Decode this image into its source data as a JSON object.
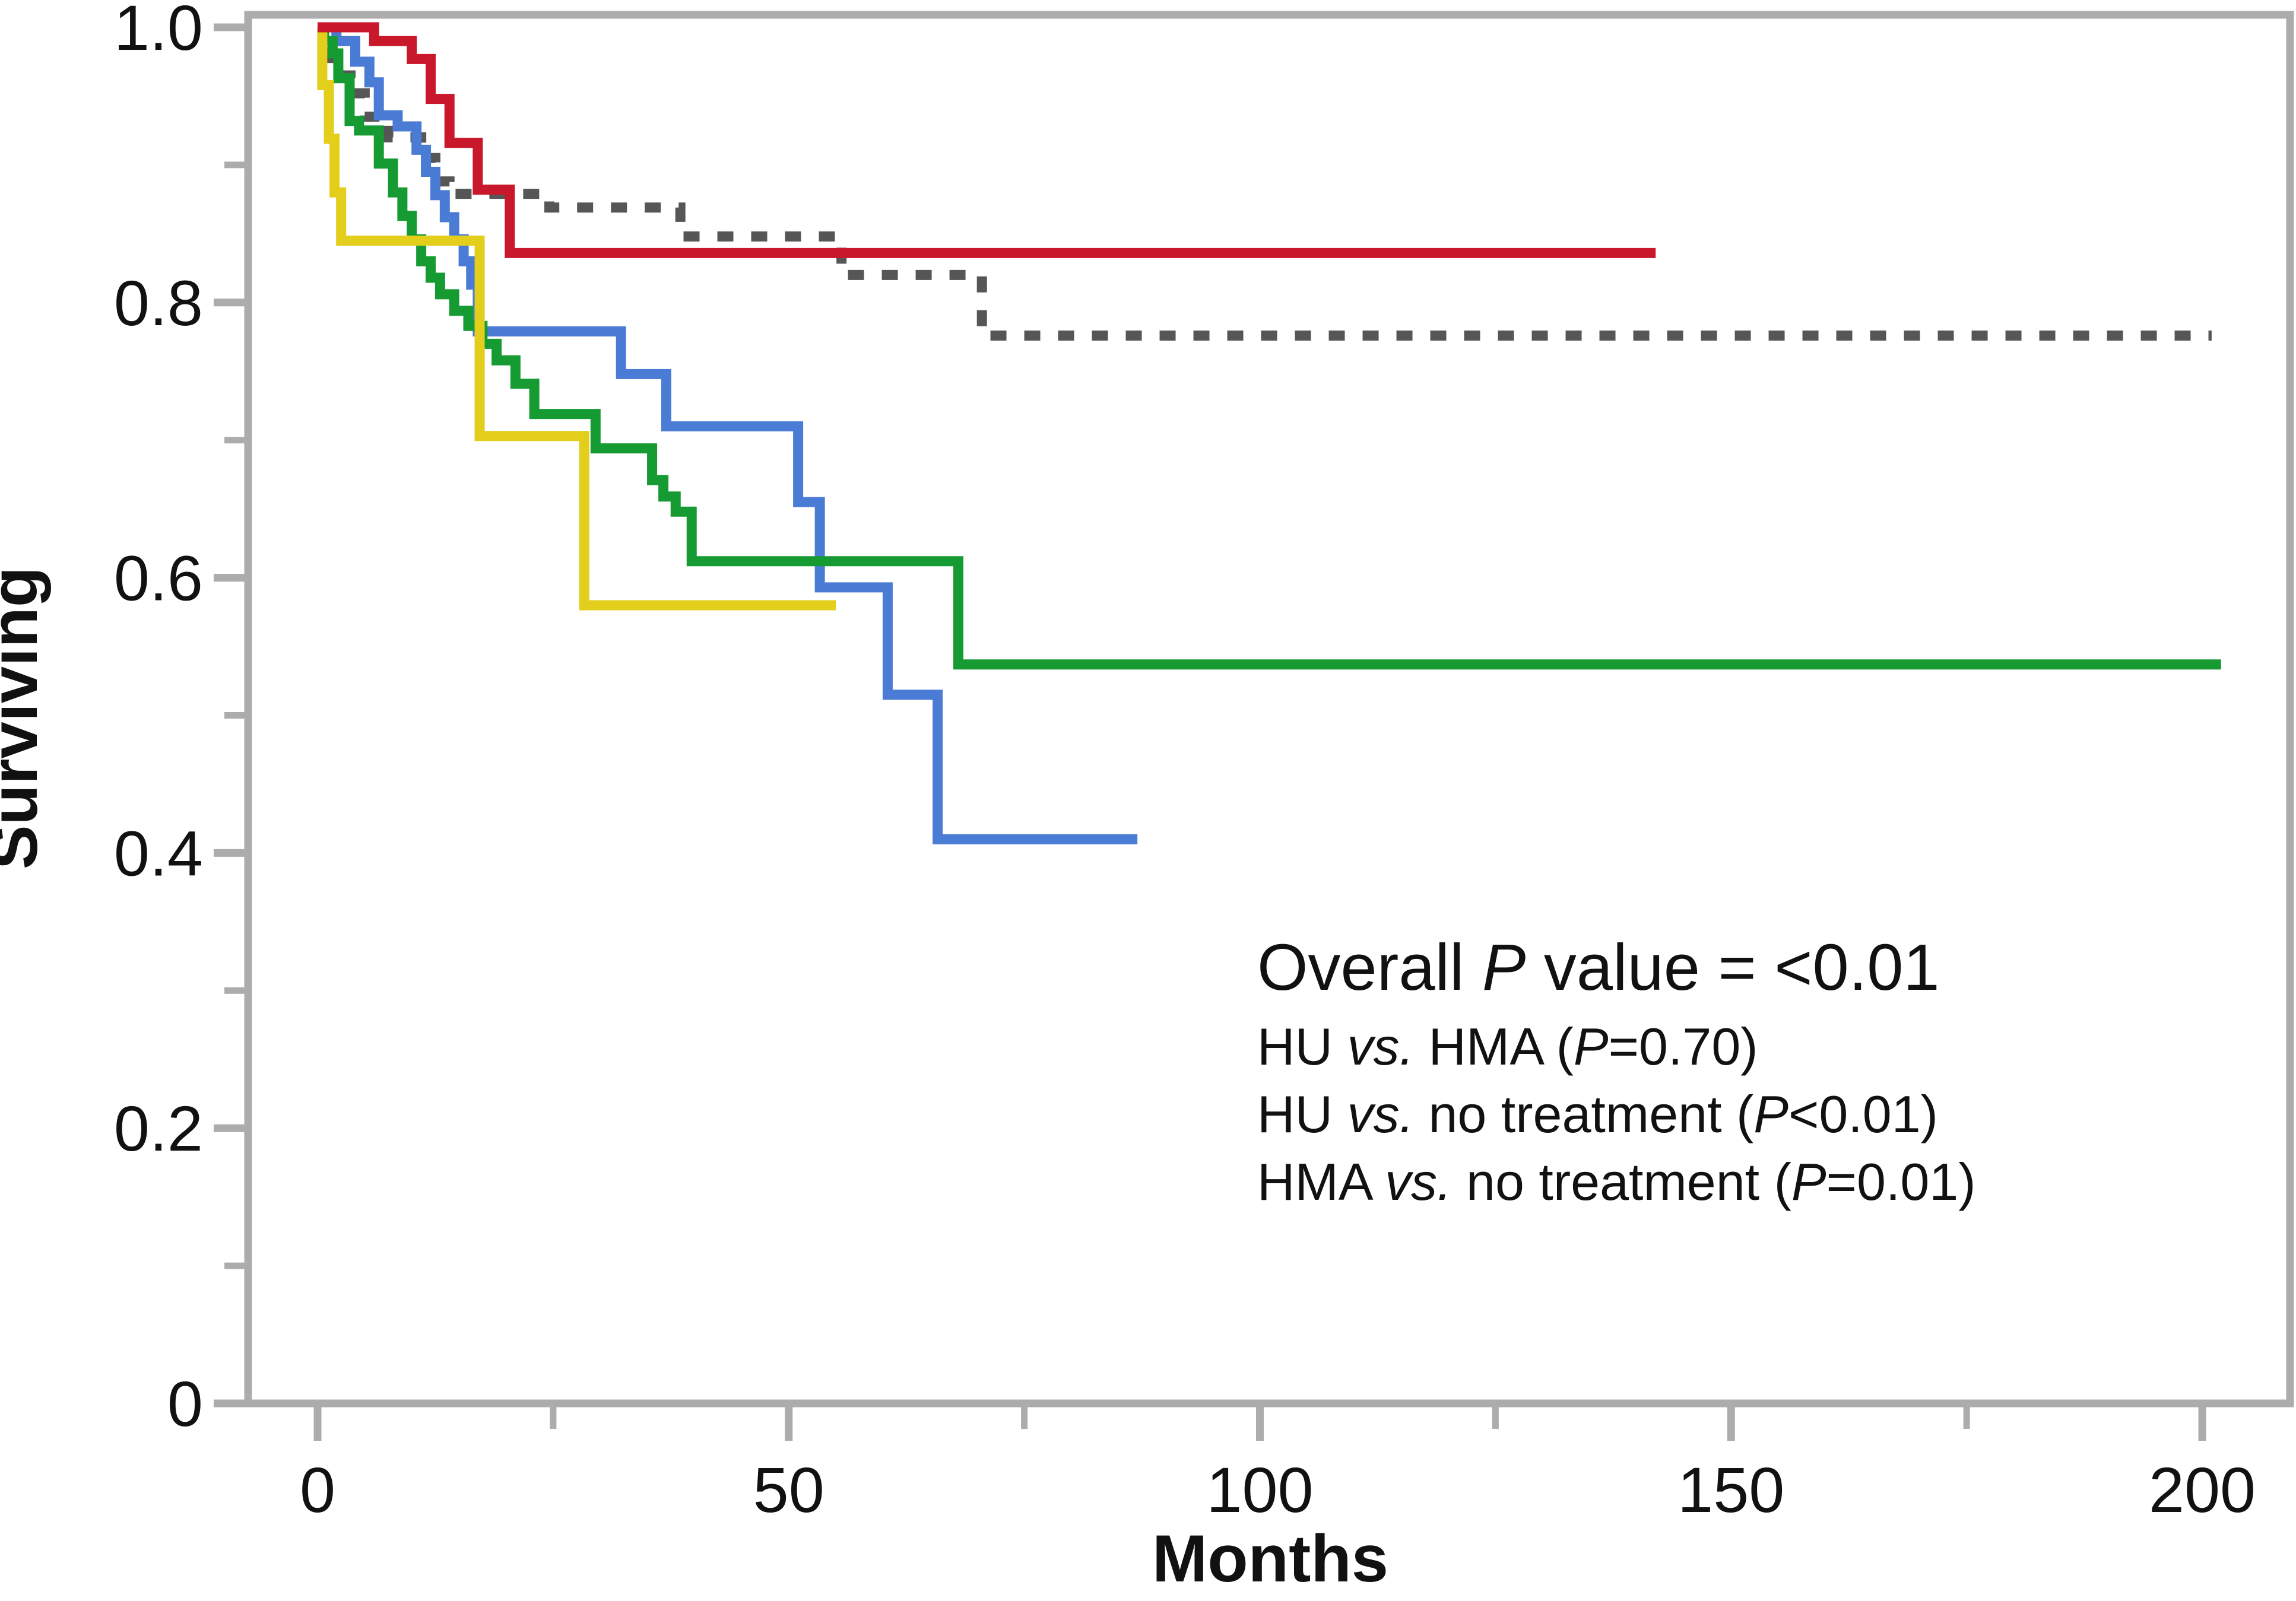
{
  "chart_data": {
    "type": "line",
    "subtype": "kaplan-meier-step-survival",
    "title": "",
    "xlabel": "Months",
    "ylabel": "Surviving",
    "xlim": [
      0,
      207
    ],
    "ylim": [
      0,
      1.0
    ],
    "grid": false,
    "legend_position": "none",
    "colors": {
      "axis": "#ACACAC",
      "text": "#111111",
      "red": "#C9182C",
      "blue": "#4A7CD6",
      "green": "#169B33",
      "yellow": "#E2CE1B",
      "gray": "#565656"
    },
    "axes": {
      "x": {
        "major": [
          {
            "label": "0",
            "value": 0
          },
          {
            "label": "50",
            "value": 50
          },
          {
            "label": "100",
            "value": 100
          },
          {
            "label": "150",
            "value": 150
          },
          {
            "label": "200",
            "value": 200
          }
        ],
        "minor": [
          25,
          75,
          125,
          175
        ]
      },
      "y": {
        "major": [
          {
            "label": "1.0",
            "value": 1.0
          },
          {
            "label": "0.8",
            "value": 0.8
          },
          {
            "label": "0.6",
            "value": 0.6
          },
          {
            "label": "0.4",
            "value": 0.4
          },
          {
            "label": "0.2",
            "value": 0.2
          },
          {
            "label": "0",
            "value": 0
          }
        ],
        "minor": [
          0.9,
          0.7,
          0.5,
          0.3,
          0.1
        ]
      }
    },
    "series": [
      {
        "name": "gray-dashed",
        "color": "#565656",
        "dashed": true,
        "end": 201,
        "points": [
          [
            0,
            1.0
          ],
          [
            1.5,
            0.965
          ],
          [
            3.5,
            0.952
          ],
          [
            5,
            0.935
          ],
          [
            7.5,
            0.92
          ],
          [
            11,
            0.905
          ],
          [
            12.5,
            0.888
          ],
          [
            14,
            0.879
          ],
          [
            24.6,
            0.869
          ],
          [
            38.5,
            0.848
          ],
          [
            55.6,
            0.82
          ],
          [
            70.5,
            0.776
          ]
        ]
      },
      {
        "name": "blue-solid",
        "color": "#4A7CD6",
        "dashed": false,
        "end": 87,
        "points": [
          [
            0,
            1.0
          ],
          [
            2,
            0.99
          ],
          [
            4,
            0.975
          ],
          [
            5.5,
            0.96
          ],
          [
            6.5,
            0.936
          ],
          [
            8.5,
            0.928
          ],
          [
            10.5,
            0.911
          ],
          [
            11.5,
            0.895
          ],
          [
            12.5,
            0.878
          ],
          [
            13.5,
            0.862
          ],
          [
            14.5,
            0.846
          ],
          [
            15.5,
            0.83
          ],
          [
            16.3,
            0.813
          ],
          [
            17,
            0.779
          ],
          [
            32.2,
            0.748
          ],
          [
            37,
            0.71
          ],
          [
            51,
            0.655
          ],
          [
            53.3,
            0.593
          ],
          [
            60.5,
            0.515
          ],
          [
            65.8,
            0.41
          ]
        ]
      },
      {
        "name": "green-solid",
        "color": "#169B33",
        "dashed": false,
        "end": 202,
        "points": [
          [
            0,
            1.0
          ],
          [
            0.7,
            0.99
          ],
          [
            1.6,
            0.981
          ],
          [
            2.2,
            0.963
          ],
          [
            3.4,
            0.932
          ],
          [
            4.4,
            0.925
          ],
          [
            6.5,
            0.901
          ],
          [
            8,
            0.88
          ],
          [
            9,
            0.863
          ],
          [
            10,
            0.846
          ],
          [
            11,
            0.83
          ],
          [
            12,
            0.818
          ],
          [
            13,
            0.806
          ],
          [
            14.5,
            0.794
          ],
          [
            16,
            0.783
          ],
          [
            17.5,
            0.77
          ],
          [
            19,
            0.758
          ],
          [
            21,
            0.741
          ],
          [
            23,
            0.719
          ],
          [
            29.5,
            0.694
          ],
          [
            35.5,
            0.671
          ],
          [
            36.7,
            0.659
          ],
          [
            38,
            0.648
          ],
          [
            39.7,
            0.612
          ],
          [
            68,
            0.537
          ]
        ]
      },
      {
        "name": "yellow-solid",
        "color": "#E2CE1B",
        "dashed": false,
        "end": 55,
        "points": [
          [
            0,
            1.0
          ],
          [
            0.5,
            0.958
          ],
          [
            1.2,
            0.919
          ],
          [
            1.8,
            0.88
          ],
          [
            2.5,
            0.845
          ],
          [
            17.2,
            0.703
          ],
          [
            28.3,
            0.58
          ]
        ]
      },
      {
        "name": "red-solid",
        "color": "#C9182C",
        "dashed": false,
        "end": 142,
        "points": [
          [
            0,
            1.0
          ],
          [
            6,
            0.99
          ],
          [
            10,
            0.977
          ],
          [
            12,
            0.948
          ],
          [
            14,
            0.916
          ],
          [
            17,
            0.882
          ],
          [
            20.4,
            0.836
          ]
        ]
      }
    ],
    "annotations": {
      "heading": [
        {
          "text": "Overall ",
          "italic": false
        },
        {
          "text": "P",
          "italic": true
        },
        {
          "text": " value = <0.01",
          "italic": false
        }
      ],
      "comparisons": [
        [
          {
            "text": "HU ",
            "italic": false
          },
          {
            "text": "vs.",
            "italic": true
          },
          {
            "text": " HMA (",
            "italic": false
          },
          {
            "text": "P",
            "italic": true
          },
          {
            "text": "=0.70)",
            "italic": false
          }
        ],
        [
          {
            "text": "HU ",
            "italic": false
          },
          {
            "text": "vs.",
            "italic": true
          },
          {
            "text": " no treatment (",
            "italic": false
          },
          {
            "text": "P",
            "italic": true
          },
          {
            "text": "<0.01)",
            "italic": false
          }
        ],
        [
          {
            "text": "HMA ",
            "italic": false
          },
          {
            "text": "vs.",
            "italic": true
          },
          {
            "text": " no treatment (",
            "italic": false
          },
          {
            "text": "P",
            "italic": true
          },
          {
            "text": "=0.01)",
            "italic": false
          }
        ]
      ]
    }
  }
}
